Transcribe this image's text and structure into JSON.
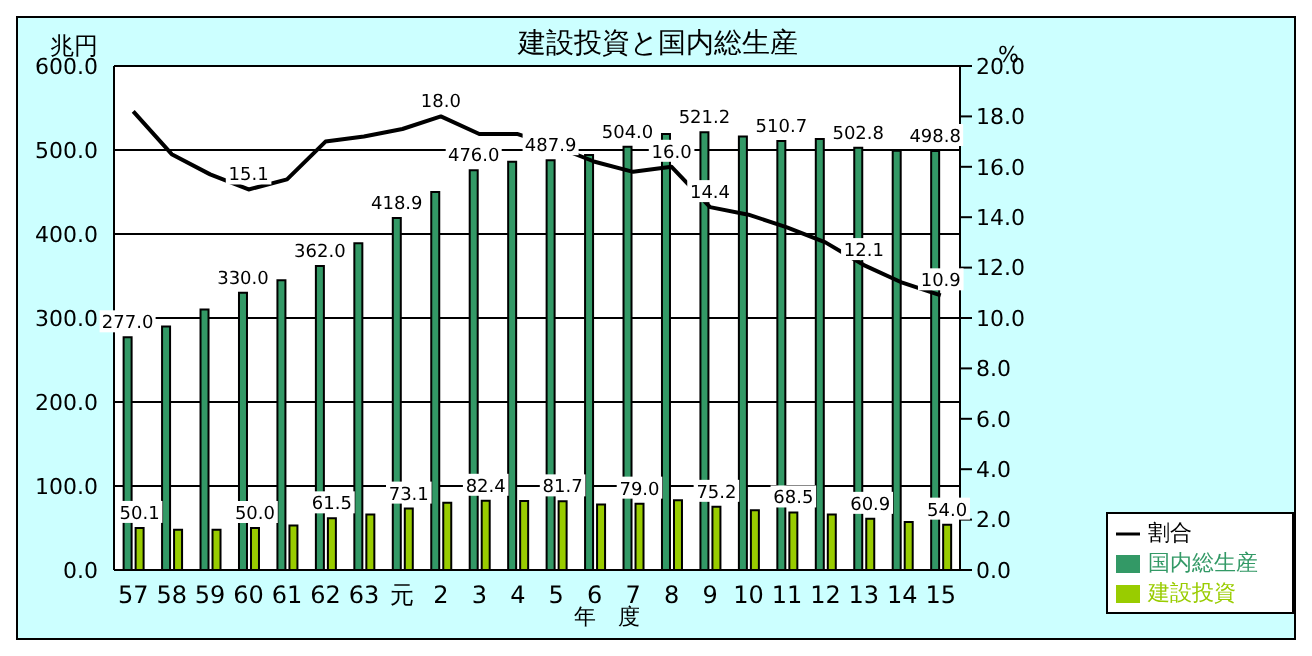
{
  "chart_data": {
    "type": "bar",
    "title": "建設投資と国内総生産",
    "xlabel": "年　度",
    "ylabel": "兆円",
    "y2label": "%",
    "categories": [
      "57",
      "58",
      "59",
      "60",
      "61",
      "62",
      "63",
      "元",
      "2",
      "3",
      "4",
      "5",
      "6",
      "7",
      "8",
      "9",
      "10",
      "11",
      "12",
      "13",
      "14",
      "15"
    ],
    "series": [
      {
        "name": "国内総生産",
        "color": "#339966",
        "values": [
          277.0,
          290,
          310,
          330.0,
          345,
          362.0,
          389,
          418.9,
          450,
          476.0,
          486,
          487.9,
          494,
          504.0,
          519,
          521.2,
          516,
          510.7,
          513,
          502.8,
          499,
          498.8
        ],
        "value_labels": [
          "277.0",
          null,
          null,
          "330.0",
          null,
          "362.0",
          null,
          "418.9",
          null,
          "476.0",
          null,
          "487.9",
          null,
          "504.0",
          null,
          "521.2",
          null,
          "510.7",
          null,
          "502.8",
          null,
          "498.8"
        ]
      },
      {
        "name": "建設投資",
        "color": "#99cc00",
        "values": [
          50.1,
          48,
          48,
          50.0,
          53,
          61.5,
          66,
          73.1,
          80,
          82.4,
          82,
          81.7,
          78,
          79.0,
          83,
          75.2,
          71,
          68.5,
          66,
          60.9,
          57,
          54.0
        ],
        "value_labels": [
          "50.1",
          null,
          null,
          "50.0",
          null,
          "61.5",
          null,
          "73.1",
          null,
          "82.4",
          null,
          "81.7",
          null,
          "79.0",
          null,
          "75.2",
          null,
          "68.5",
          null,
          "60.9",
          null,
          "54.0"
        ]
      },
      {
        "name": "割合",
        "type": "line",
        "axis": "y2",
        "color": "#000000",
        "values": [
          18.2,
          16.5,
          15.7,
          15.1,
          15.5,
          17.0,
          17.2,
          17.5,
          18.0,
          17.3,
          17.3,
          16.8,
          16.2,
          15.8,
          16.0,
          14.4,
          14.1,
          13.6,
          13.0,
          12.1,
          11.4,
          10.9
        ],
        "value_labels": [
          null,
          null,
          null,
          "15.1",
          null,
          null,
          null,
          null,
          "18.0",
          null,
          null,
          null,
          null,
          null,
          "16.0",
          "14.4",
          null,
          null,
          null,
          "12.1",
          null,
          "10.9"
        ]
      }
    ],
    "ylim": [
      0,
      600
    ],
    "yticks": [
      {
        "value": 0,
        "label": "0.0"
      },
      {
        "value": 100,
        "label": "100.0"
      },
      {
        "value": 200,
        "label": "200.0"
      },
      {
        "value": 300,
        "label": "300.0"
      },
      {
        "value": 400,
        "label": "400.0"
      },
      {
        "value": 500,
        "label": "500.0"
      },
      {
        "value": 600,
        "label": "600.0"
      }
    ],
    "y2lim": [
      0,
      20
    ],
    "y2ticks": [
      {
        "value": 0,
        "label": "0.0"
      },
      {
        "value": 2,
        "label": "2.0"
      },
      {
        "value": 4,
        "label": "4.0"
      },
      {
        "value": 6,
        "label": "6.0"
      },
      {
        "value": 8,
        "label": "8.0"
      },
      {
        "value": 10,
        "label": "10.0"
      },
      {
        "value": 12,
        "label": "12.0"
      },
      {
        "value": 14,
        "label": "14.0"
      },
      {
        "value": 16,
        "label": "16.0"
      },
      {
        "value": 18,
        "label": "18.0"
      },
      {
        "value": 20,
        "label": "20.0"
      }
    ],
    "grid": "y",
    "legend": "bottom right",
    "marker": "none"
  }
}
